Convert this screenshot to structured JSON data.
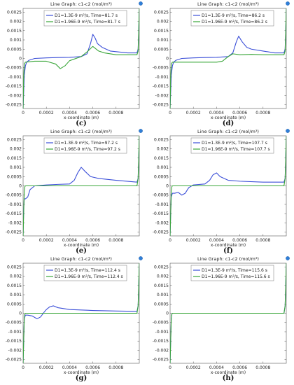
{
  "chart_data": [
    {
      "panel": "(c)",
      "type": "line",
      "title": "Line Graph: c1-c2 (mol/m³)",
      "xlabel": "x-coordinate (m)",
      "xlim": [
        0,
        0.001
      ],
      "ylim": [
        -0.0027,
        0.0027
      ],
      "xticks": [
        "0",
        "0.0002",
        "0.0004",
        "0.0006",
        "0.0008"
      ],
      "yticks": [
        "0.0025",
        "0.002",
        "0.0015",
        "0.001",
        "0.0005",
        "0",
        "-0.0005",
        "-0.001",
        "-0.0015",
        "-0.002",
        "-0.0025"
      ],
      "series": [
        {
          "name": "D1=1.3E-9 m²/s, Time=81.7 s",
          "color": "#3b4fd8",
          "x": [
            0,
            5e-06,
            1e-05,
            2e-05,
            3e-05,
            5e-05,
            0.0001,
            0.0002,
            0.0003,
            0.0004,
            0.0005,
            0.00055,
            0.00058,
            0.0006,
            0.00062,
            0.00064,
            0.00068,
            0.00075,
            0.0009,
            0.00098,
            0.00099,
            0.000995,
            0.001
          ],
          "y": [
            -0.0027,
            -0.0018,
            -0.0009,
            -0.0004,
            -0.0002,
            -0.0001,
            0,
            3e-05,
            5e-05,
            6e-05,
            0.0001,
            0.00025,
            0.0008,
            0.0013,
            0.0011,
            0.0008,
            0.0006,
            0.0004,
            0.0003,
            0.0003,
            0.0005,
            0.0015,
            0.0027
          ]
        },
        {
          "name": "D1=1.96E-9 m²/s, Time=81.7 s",
          "color": "#3aa63a",
          "x": [
            0,
            5e-06,
            1e-05,
            2e-05,
            0.0001,
            0.0002,
            0.00028,
            0.00032,
            0.00036,
            0.0004,
            0.0005,
            0.00055,
            0.0006,
            0.00065,
            0.0007,
            0.0008,
            0.00098,
            0.00099,
            0.000995,
            0.001
          ],
          "y": [
            -0.0027,
            -0.001,
            -0.0003,
            -0.0002,
            -0.00015,
            -0.00015,
            -0.0003,
            -0.00055,
            -0.0004,
            -0.00012,
            0.0001,
            0.00035,
            0.00065,
            0.0004,
            0.0003,
            0.0002,
            0.0002,
            0.0004,
            0.0015,
            0.0027
          ]
        }
      ]
    },
    {
      "panel": "(d)",
      "type": "line",
      "title": "Line Graph: c1-c2 (mol/m³)",
      "xlabel": "x-coordinate (m)",
      "xlim": [
        0,
        0.001
      ],
      "ylim": [
        -0.0027,
        0.0027
      ],
      "xticks": [
        "0",
        "0.0002",
        "0.0004",
        "0.0006",
        "0.0008"
      ],
      "yticks": [
        "0.0025",
        "0.002",
        "0.0015",
        "0.001",
        "0.0005",
        "0",
        "-0.0005",
        "-0.001",
        "-0.0015",
        "-0.002",
        "-0.0025"
      ],
      "series": [
        {
          "name": "D1=1.3E-9 m²/s, Time=86.2 s",
          "color": "#3b4fd8",
          "x": [
            0,
            5e-06,
            1e-05,
            2e-05,
            3e-05,
            5e-05,
            0.0001,
            0.0002,
            0.0003,
            0.0004,
            0.0005,
            0.00054,
            0.00057,
            0.00059,
            0.00062,
            0.00066,
            0.0007,
            0.0008,
            0.0009,
            0.00098,
            0.00099,
            0.000995,
            0.001
          ],
          "y": [
            -0.0027,
            -0.0018,
            -0.0009,
            -0.0004,
            -0.0002,
            -0.0001,
            0,
            3e-05,
            5e-05,
            6e-05,
            0.0001,
            0.0003,
            0.0009,
            0.0012,
            0.0009,
            0.0006,
            0.0005,
            0.0004,
            0.0003,
            0.0003,
            0.0005,
            0.0015,
            0.0027
          ]
        },
        {
          "name": "D1=1.96E-9 m²/s, Time=86.2 s",
          "color": "#3aa63a",
          "x": [
            0,
            5e-06,
            1e-05,
            2e-05,
            0.0001,
            0.0002,
            0.0003,
            0.0004,
            0.00045,
            0.0005,
            0.00054,
            0.0006,
            0.0007,
            0.0008,
            0.00098,
            0.00099,
            0.000995,
            0.001
          ],
          "y": [
            -0.0027,
            -0.001,
            -0.0003,
            -0.0002,
            -0.0002,
            -0.0002,
            -0.0002,
            -0.0002,
            -0.00015,
            0.0001,
            0.00025,
            0.0002,
            0.00022,
            0.0002,
            0.0002,
            0.0004,
            0.0015,
            0.0027
          ]
        }
      ]
    },
    {
      "panel": "(e)",
      "type": "line",
      "title": "Line Graph: c1-c2 (mol/m³)",
      "xlabel": "x-coordinate (m)",
      "xlim": [
        0,
        0.001
      ],
      "ylim": [
        -0.0027,
        0.0027
      ],
      "xticks": [
        "0",
        "0.0002",
        "0.0004",
        "0.0006",
        "0.0008"
      ],
      "yticks": [
        "0.0025",
        "0.002",
        "0.0015",
        "0.001",
        "0.0005",
        "0",
        "-0.0005",
        "-0.001",
        "-0.0015",
        "-0.002",
        "-0.0025"
      ],
      "series": [
        {
          "name": "D1=1.3E-9 m²/s, Time=97.2 s",
          "color": "#3b4fd8",
          "x": [
            0,
            5e-06,
            1e-05,
            2e-05,
            4e-05,
            6e-05,
            0.0001,
            0.0002,
            0.0003,
            0.0004,
            0.00044,
            0.00047,
            0.0005,
            0.00053,
            0.00058,
            0.00065,
            0.0008,
            0.00098,
            0.00099,
            0.000995,
            0.001
          ],
          "y": [
            -0.0027,
            -0.0012,
            -0.0007,
            -0.0007,
            -0.0006,
            -0.0002,
            0,
            5e-05,
            8e-05,
            0.0001,
            0.0003,
            0.0007,
            0.001,
            0.0008,
            0.0005,
            0.0004,
            0.0003,
            0.0002,
            0.0004,
            0.0015,
            0.0027
          ]
        },
        {
          "name": "D1=1.96E-9 m²/s, Time=97.2 s",
          "color": "#3aa63a",
          "x": [
            0,
            5e-06,
            1e-05,
            1.5e-05,
            2e-05,
            5e-05,
            0.0002,
            0.0004,
            0.0006,
            0.0008,
            0.00098,
            0.00099,
            0.000995,
            0.001
          ],
          "y": [
            -0.0027,
            -0.0015,
            -0.0003,
            -5e-05,
            0,
            0,
            0,
            0,
            0,
            0,
            0,
            0.0004,
            0.0015,
            0.0027
          ]
        }
      ]
    },
    {
      "panel": "(f)",
      "type": "line",
      "title": "Line Graph: c1-c2 (mol/m³)",
      "xlabel": "x-coordinate (m)",
      "xlim": [
        0,
        0.001
      ],
      "ylim": [
        -0.0027,
        0.0027
      ],
      "xticks": [
        "0",
        "0.0002",
        "0.0004",
        "0.0006",
        "0.0008"
      ],
      "yticks": [
        "0.0025",
        "0.002",
        "0.0015",
        "0.001",
        "0.0005",
        "0",
        "-0.0005",
        "-0.001",
        "-0.0015",
        "-0.002",
        "-0.0025"
      ],
      "series": [
        {
          "name": "D1=1.3E-9 m²/s, Time=107.7 s",
          "color": "#3b4fd8",
          "x": [
            0,
            5e-06,
            1e-05,
            2e-05,
            4e-05,
            7e-05,
            0.0001,
            0.00013,
            0.00016,
            0.0002,
            0.0003,
            0.00034,
            0.00037,
            0.0004,
            0.00043,
            0.0005,
            0.0006,
            0.0008,
            0.00098,
            0.00099,
            0.000995,
            0.001
          ],
          "y": [
            -0.0027,
            -0.0015,
            -0.0006,
            -0.0004,
            -0.0004,
            -0.00035,
            -0.0005,
            -0.0004,
            -0.0001,
            5e-05,
            0.0001,
            0.0003,
            0.0006,
            0.0007,
            0.0005,
            0.0003,
            0.00025,
            0.0002,
            0.0002,
            0.0004,
            0.0015,
            0.0027
          ]
        },
        {
          "name": "D1=1.96E-9 m²/s, Time=107.7 s",
          "color": "#3aa63a",
          "x": [
            0,
            5e-06,
            1e-05,
            1.5e-05,
            2e-05,
            5e-05,
            0.0002,
            0.0004,
            0.0006,
            0.0008,
            0.00098,
            0.00099,
            0.000995,
            0.001
          ],
          "y": [
            -0.0027,
            -0.0015,
            -0.0003,
            -5e-05,
            0,
            0,
            0,
            0,
            0,
            0,
            0,
            0.0004,
            0.0015,
            0.0027
          ]
        }
      ]
    },
    {
      "panel": "(g)",
      "type": "line",
      "title": "Line Graph: c1-c2 (mol/m³)",
      "xlabel": "x-coordinate (m)",
      "xlim": [
        0,
        0.001
      ],
      "ylim": [
        -0.0027,
        0.0027
      ],
      "xticks": [
        "0",
        "0.0002",
        "0.0004",
        "0.0006",
        "0.0008"
      ],
      "yticks": [
        "0.0025",
        "0.002",
        "0.0015",
        "0.001",
        "0.0005",
        "0",
        "-0.0005",
        "-0.001",
        "-0.0015",
        "-0.002",
        "-0.0025"
      ],
      "series": [
        {
          "name": "D1=1.3E-9 m²/s, Time=112.4 s",
          "color": "#3b4fd8",
          "x": [
            0,
            5e-06,
            1e-05,
            2e-05,
            4e-05,
            8e-05,
            0.00012,
            0.00015,
            0.00018,
            0.0002,
            0.00023,
            0.00026,
            0.0003,
            0.0004,
            0.0006,
            0.0008,
            0.00098,
            0.00099,
            0.000995,
            0.001
          ],
          "y": [
            -0.0027,
            -0.0015,
            -0.0003,
            -0.0001,
            -0.0001,
            -0.00015,
            -0.0003,
            -0.0002,
            5e-05,
            0.0002,
            0.00035,
            0.0004,
            0.0003,
            0.0002,
            0.00015,
            0.00012,
            0.0001,
            0.0004,
            0.0015,
            0.0027
          ]
        },
        {
          "name": "D1=1.96E-9 m²/s, Time=112.4 s",
          "color": "#3aa63a",
          "x": [
            0,
            5e-06,
            1e-05,
            1.5e-05,
            2e-05,
            5e-05,
            0.0002,
            0.0004,
            0.0006,
            0.0008,
            0.00098,
            0.00099,
            0.000995,
            0.001
          ],
          "y": [
            -0.0027,
            -0.0015,
            -0.0003,
            -5e-05,
            0,
            0,
            0,
            0,
            0,
            0,
            0,
            0.0004,
            0.0015,
            0.0027
          ]
        }
      ]
    },
    {
      "panel": "(h)",
      "type": "line",
      "title": "Line Graph: c1-c2 (mol/m³)",
      "xlabel": "x-coordinate (m)",
      "xlim": [
        0,
        0.001
      ],
      "ylim": [
        -0.0027,
        0.0027
      ],
      "xticks": [
        "0",
        "0.0002",
        "0.0004",
        "0.0006",
        "0.0008"
      ],
      "yticks": [
        "0.0025",
        "0.002",
        "0.0015",
        "0.001",
        "0.0005",
        "0",
        "-0.0005",
        "-0.001",
        "-0.0015",
        "-0.002",
        "-0.0025"
      ],
      "series": [
        {
          "name": "D1=1.3E-9 m²/s, Time=115.6 s",
          "color": "#3b4fd8",
          "x": [
            0,
            5e-06,
            1e-05,
            1.5e-05,
            2e-05,
            5e-05,
            0.0002,
            0.0004,
            0.0006,
            0.0008,
            0.00098,
            0.00099,
            0.000995,
            0.001
          ],
          "y": [
            -0.0027,
            -0.0015,
            -0.0003,
            -5e-05,
            0,
            0,
            0,
            0,
            0,
            0,
            0,
            0.0004,
            0.0015,
            0.0027
          ]
        },
        {
          "name": "D1=1.96E-9 m²/s, Time=115.6 s",
          "color": "#3aa63a",
          "x": [
            0,
            5e-06,
            1e-05,
            1.5e-05,
            2e-05,
            5e-05,
            0.0002,
            0.0004,
            0.0006,
            0.0008,
            0.00098,
            0.00099,
            0.000995,
            0.001
          ],
          "y": [
            -0.0027,
            -0.0015,
            -0.0003,
            -5e-05,
            0,
            0,
            0,
            0,
            0,
            0,
            0,
            0.0004,
            0.0015,
            0.0027
          ]
        }
      ]
    }
  ]
}
